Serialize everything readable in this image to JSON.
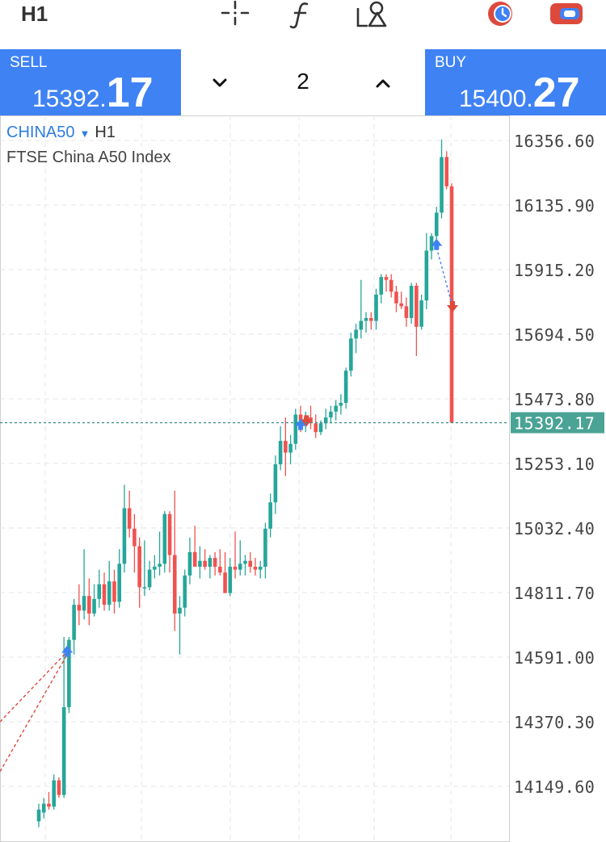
{
  "toolbar": {
    "timeframe": "H1",
    "icons": [
      "crosshair-icon",
      "function-icon",
      "objects-icon",
      "trade-clock-icon",
      "account-toggle-icon"
    ]
  },
  "trade": {
    "sell": {
      "label": "SELL",
      "price_main": "15392.",
      "price_big": "17"
    },
    "buy": {
      "label": "BUY",
      "price_main": "15400.",
      "price_big": "27"
    },
    "lot": "2"
  },
  "chart": {
    "symbol": "CHINA50",
    "timeframe": "H1",
    "description": "FTSE China A50 Index",
    "current_price": "15392.17",
    "colors": {
      "bull": "#26a69a",
      "bear": "#ef5350",
      "accent": "#3f82f4",
      "price_tag": "#4aa394"
    }
  },
  "chart_data": {
    "type": "candlestick",
    "y_ticks": [
      "16356.60",
      "16135.90",
      "15915.20",
      "15694.50",
      "15473.80",
      "15253.10",
      "15032.40",
      "14811.70",
      "14591.00",
      "14370.30",
      "14149.60"
    ],
    "ylim": [
      14040,
      16460
    ],
    "current_price": 15392.17,
    "candles": [
      [
        14030,
        14090,
        14010,
        14070
      ],
      [
        14060,
        14110,
        14040,
        14090
      ],
      [
        14090,
        14130,
        14070,
        14080
      ],
      [
        14080,
        14190,
        14070,
        14170
      ],
      [
        14170,
        14180,
        14110,
        14120
      ],
      [
        14120,
        14660,
        14110,
        14420
      ],
      [
        14420,
        14660,
        14400,
        14650
      ],
      [
        14650,
        14790,
        14600,
        14770
      ],
      [
        14770,
        14840,
        14700,
        14750
      ],
      [
        14750,
        14960,
        14720,
        14800
      ],
      [
        14800,
        14860,
        14700,
        14740
      ],
      [
        14740,
        14840,
        14730,
        14790
      ],
      [
        14790,
        14890,
        14760,
        14840
      ],
      [
        14840,
        14880,
        14750,
        14770
      ],
      [
        14770,
        14920,
        14750,
        14850
      ],
      [
        14850,
        14890,
        14740,
        14780
      ],
      [
        14780,
        14960,
        14760,
        14910
      ],
      [
        14910,
        15180,
        14880,
        15100
      ],
      [
        15100,
        15160,
        15000,
        15030
      ],
      [
        15030,
        15080,
        14880,
        14970
      ],
      [
        14970,
        15000,
        14760,
        14830
      ],
      [
        14830,
        14990,
        14800,
        14830
      ],
      [
        14830,
        14920,
        14820,
        14890
      ],
      [
        14890,
        14940,
        14860,
        14900
      ],
      [
        14900,
        15020,
        14870,
        14910
      ],
      [
        14910,
        15090,
        14880,
        15080
      ],
      [
        15080,
        15090,
        14880,
        14940
      ],
      [
        14940,
        15160,
        14680,
        14740
      ],
      [
        14740,
        14800,
        14600,
        14760
      ],
      [
        14760,
        14890,
        14730,
        14870
      ],
      [
        14870,
        15000,
        14840,
        14950
      ],
      [
        14950,
        15040,
        14910,
        14900
      ],
      [
        14900,
        14970,
        14860,
        14920
      ],
      [
        14920,
        14960,
        14890,
        14900
      ],
      [
        14900,
        14940,
        14860,
        14930
      ],
      [
        14930,
        14950,
        14870,
        14900
      ],
      [
        14900,
        14960,
        14870,
        14880
      ],
      [
        14880,
        14950,
        14810,
        14810
      ],
      [
        14810,
        14930,
        14800,
        14900
      ],
      [
        14900,
        15020,
        14860,
        14890
      ],
      [
        14890,
        14990,
        14870,
        14910
      ],
      [
        14910,
        14940,
        14870,
        14920
      ],
      [
        14920,
        14950,
        14880,
        14900
      ],
      [
        14900,
        14930,
        14870,
        14890
      ],
      [
        14890,
        14920,
        14860,
        14900
      ],
      [
        14900,
        15050,
        14860,
        15030
      ],
      [
        15030,
        15150,
        15000,
        15120
      ],
      [
        15120,
        15280,
        15080,
        15250
      ],
      [
        15250,
        15380,
        15230,
        15330
      ],
      [
        15330,
        15410,
        15210,
        15290
      ],
      [
        15290,
        15350,
        15250,
        15320
      ],
      [
        15320,
        15440,
        15300,
        15420
      ],
      [
        15420,
        15450,
        15360,
        15400
      ],
      [
        15400,
        15430,
        15360,
        15410
      ],
      [
        15410,
        15450,
        15370,
        15390
      ],
      [
        15390,
        15420,
        15340,
        15360
      ],
      [
        15360,
        15400,
        15350,
        15390
      ],
      [
        15390,
        15440,
        15370,
        15410
      ],
      [
        15410,
        15450,
        15390,
        15430
      ],
      [
        15430,
        15470,
        15400,
        15450
      ],
      [
        15450,
        15490,
        15420,
        15460
      ],
      [
        15460,
        15580,
        15440,
        15570
      ],
      [
        15570,
        15700,
        15550,
        15680
      ],
      [
        15680,
        15730,
        15630,
        15710
      ],
      [
        15710,
        15880,
        15680,
        15740
      ],
      [
        15740,
        15770,
        15700,
        15750
      ],
      [
        15750,
        15770,
        15710,
        15740
      ],
      [
        15740,
        15850,
        15710,
        15830
      ],
      [
        15830,
        15900,
        15800,
        15890
      ],
      [
        15890,
        15900,
        15840,
        15880
      ],
      [
        15880,
        15900,
        15820,
        15840
      ],
      [
        15840,
        15860,
        15770,
        15800
      ],
      [
        15800,
        15840,
        15780,
        15790
      ],
      [
        15790,
        15820,
        15720,
        15750
      ],
      [
        15750,
        15870,
        15730,
        15860
      ],
      [
        15860,
        15870,
        15620,
        15720
      ],
      [
        15720,
        15830,
        15710,
        15810
      ],
      [
        15810,
        16040,
        15780,
        15980
      ],
      [
        15980,
        16040,
        15950,
        16030
      ],
      [
        16030,
        16130,
        16000,
        16110
      ],
      [
        16110,
        16360,
        16090,
        16300
      ],
      [
        16300,
        16320,
        16190,
        16200
      ],
      [
        16200,
        16210,
        15392,
        15392
      ]
    ]
  }
}
